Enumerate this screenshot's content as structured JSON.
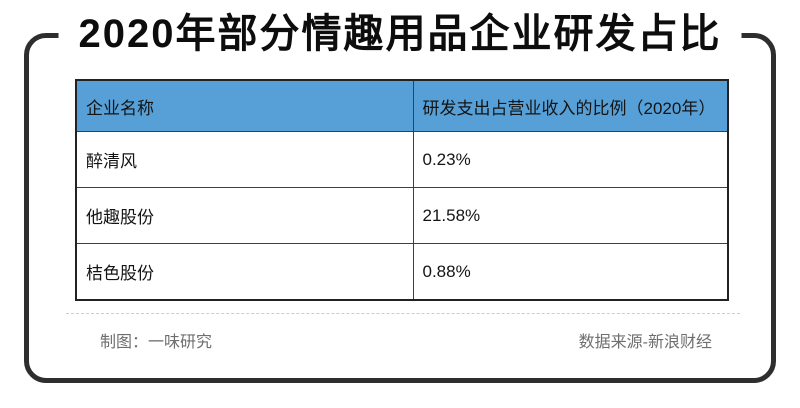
{
  "title": "2020年部分情趣用品企业研发占比",
  "table": {
    "headers": [
      "企业名称",
      "研发支出占营业收入的比例（2020年）"
    ],
    "rows": [
      {
        "name": "醉清风",
        "ratio": "0.23%"
      },
      {
        "name": "他趣股份",
        "ratio": "21.58%"
      },
      {
        "name": "桔色股份",
        "ratio": "0.88%"
      }
    ]
  },
  "footer": {
    "credit": "制图：一味研究",
    "source": "数据来源-新浪财经"
  },
  "colors": {
    "header_bg": "#56a0d7",
    "frame_border": "#2e2e2e",
    "title_text": "#0d0d0d",
    "cell_text": "#141414",
    "footer_text": "#6e6e6e",
    "divider": "#cccccc"
  },
  "chart_data": {
    "type": "table",
    "title": "2020年部分情趣用品企业研发占比",
    "columns": [
      "企业名称",
      "研发支出占营业收入的比例（2020年）"
    ],
    "rows": [
      [
        "醉清风",
        "0.23%"
      ],
      [
        "他趣股份",
        "21.58%"
      ],
      [
        "桔色股份",
        "0.88%"
      ]
    ],
    "values_numeric_percent": [
      {
        "company": "醉清风",
        "rd_ratio_pct": 0.23
      },
      {
        "company": "他趣股份",
        "rd_ratio_pct": 21.58
      },
      {
        "company": "桔色股份",
        "rd_ratio_pct": 0.88
      }
    ],
    "year": "2020",
    "credit": "制图：一味研究",
    "source": "数据来源-新浪财经",
    "layout": {
      "header_bg": "#56a0d7",
      "grid": true
    }
  }
}
